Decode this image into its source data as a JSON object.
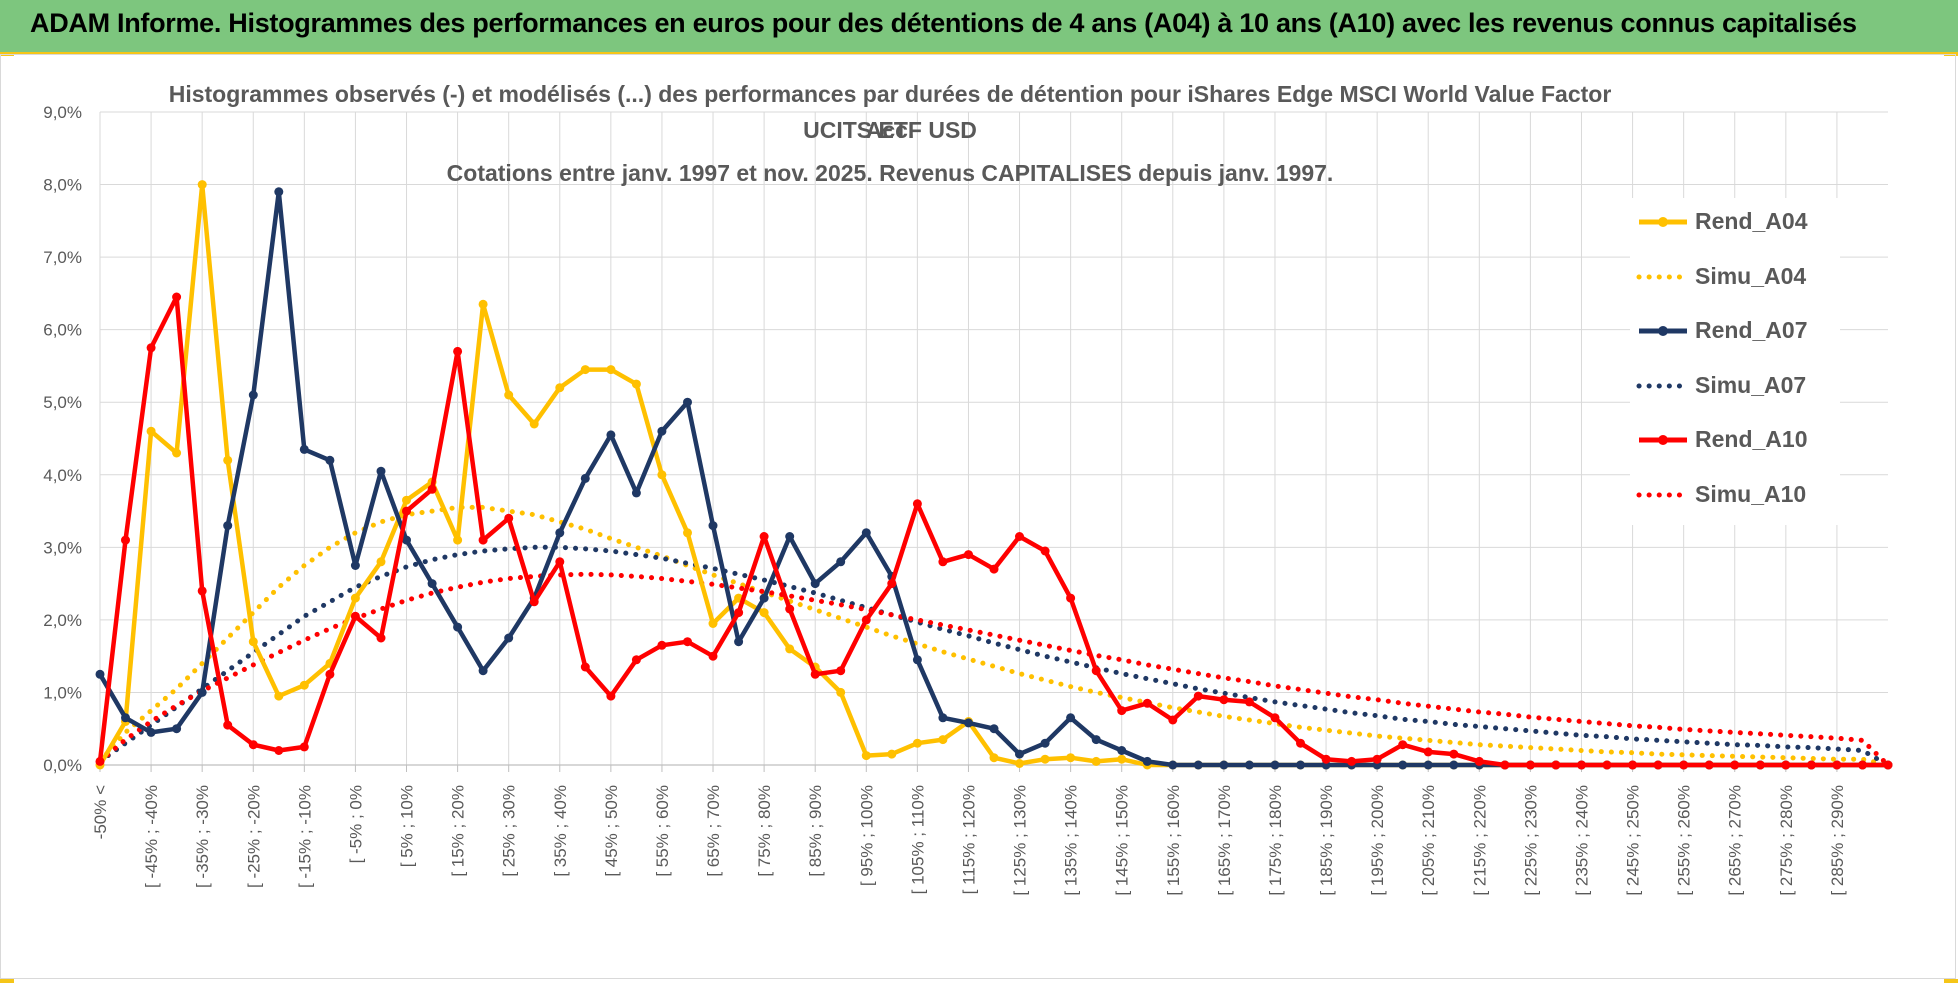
{
  "banner": {
    "title": "ADAM Informe. Histogrammes des performances en euros pour des détentions de 4 ans (A04) à 10 ans (A10) avec les revenus connus capitalisés"
  },
  "chart_data": {
    "type": "line",
    "title_lines": [
      "Histogrammes observés (-) et modélisés (...) des performances par durées de détention pour iShares Edge MSCI World Value Factor UCITS ETF USD",
      "Acc.",
      "Cotations entre janv. 1997 et nov. 2025. Revenus CAPITALISES depuis janv. 1997."
    ],
    "ylim": [
      0,
      9
    ],
    "y_ticks": [
      "0,0%",
      "1,0%",
      "2,0%",
      "3,0%",
      "4,0%",
      "5,0%",
      "6,0%",
      "7,0%",
      "8,0%",
      "9,0%"
    ],
    "grid": true,
    "legend_position": "right",
    "categories": [
      "-50% <",
      "[ -50% ; -45%",
      "[ -45% ; -40%",
      "[ -40% ; -35%",
      "[ -35% ; -30%",
      "[ -30% ; -25%",
      "[ -25% ; -20%",
      "[ -20% ; -15%",
      "[ -15% ; -10%",
      "[ -10% ; -5%",
      "[ -5% ; 0%",
      "[ 0% ; 5%",
      "[ 5% ; 10%",
      "[ 10% ; 15%",
      "[ 15% ; 20%",
      "[ 20% ; 25%",
      "[ 25% ; 30%",
      "[ 30% ; 35%",
      "[ 35% ; 40%",
      "[ 40% ; 45%",
      "[ 45% ; 50%",
      "[ 50% ; 55%",
      "[ 55% ; 60%",
      "[ 60% ; 65%",
      "[ 65% ; 70%",
      "[ 70% ; 75%",
      "[ 75% ; 80%",
      "[ 80% ; 85%",
      "[ 85% ; 90%",
      "[ 90% ; 95%",
      "[ 95% ; 100%",
      "[ 100% ; 105%",
      "[ 105% ; 110%",
      "[ 110% ; 115%",
      "[ 115% ; 120%",
      "[ 120% ; 125%",
      "[ 125% ; 130%",
      "[ 130% ; 135%",
      "[ 135% ; 140%",
      "[ 140% ; 145%",
      "[ 145% ; 150%",
      "[ 150% ; 155%",
      "[ 155% ; 160%",
      "[ 160% ; 165%",
      "[ 165% ; 170%",
      "[ 170% ; 175%",
      "[ 175% ; 180%",
      "[ 180% ; 185%",
      "[ 185% ; 190%",
      "[ 190% ; 195%",
      "[ 195% ; 200%",
      "[ 200% ; 205%",
      "[ 205% ; 210%",
      "[ 210% ; 215%",
      "[ 215% ; 220%",
      "[ 220% ; 225%",
      "[ 225% ; 230%",
      "[ 230% ; 235%",
      "[ 235% ; 240%",
      "[ 240% ; 245%",
      "[ 245% ; 250%",
      "[ 250% ; 255%",
      "[ 255% ; 260%",
      "[ 260% ; 265%",
      "[ 265% ; 270%",
      "[ 270% ; 275%",
      "[ 275% ; 280%",
      "[ 280% ; 285%",
      "[ 285% ; 290%",
      "[ 290% ; 295%",
      "[ 295% ; 300%"
    ],
    "visible_category_labels": [
      "-50% <",
      "[ -45% ; -40%",
      "[ -35% ; -30%",
      "[ -25% ; -20%",
      "[ -15% ; -10%",
      "[ -5% ; 0%",
      "[ 5% ; 10%",
      "[ 15% ; 20%",
      "[ 25% ; 30%",
      "[ 35% ; 40%",
      "[ 45% ; 50%",
      "[ 55% ; 60%",
      "[ 65% ; 70%",
      "[ 75% ; 80%",
      "[ 85% ; 90%",
      "[ 95% ; 100%",
      "[ 105% ; 110%",
      "[ 115% ; 120%",
      "[ 125% ; 130%",
      "[ 135% ; 140%",
      "[ 145% ; 150%",
      "[ 155% ; 160%",
      "[ 165% ; 170%",
      "[ 175% ; 180%",
      "[ 185% ; 190%",
      "[ 195% ; 200%",
      "[ 205% ; 210%",
      "[ 215% ; 220%",
      "[ 225% ; 230%",
      "[ 235% ; 240%",
      "[ 245% ; 250%",
      "[ 255% ; 260%",
      "[ 265% ; 270%",
      "[ 275% ; 280%",
      "[ 285% ; 290%"
    ],
    "series": [
      {
        "name": "Rend_A04",
        "style": "solid",
        "color": "#ffc000",
        "values": [
          0.0,
          0.6,
          4.6,
          4.3,
          8.0,
          4.2,
          1.7,
          0.95,
          1.1,
          1.4,
          2.3,
          2.8,
          3.65,
          3.9,
          3.1,
          6.35,
          5.1,
          4.7,
          5.2,
          5.45,
          5.45,
          5.25,
          4.0,
          3.2,
          1.95,
          2.3,
          2.1,
          1.6,
          1.35,
          1.0,
          0.13,
          0.15,
          0.3,
          0.35,
          0.6,
          0.1,
          0.02,
          0.08,
          0.1,
          0.05,
          0.08,
          0.0,
          0.0,
          0.0,
          0.0,
          0.0,
          0.0,
          0.0,
          0.0,
          0.0,
          0.0,
          0.0,
          0.0,
          0.0,
          0.0,
          0.0,
          0.0,
          0.0,
          0.0,
          0.0,
          0.0,
          0.0,
          0.0,
          0.0,
          0.0,
          0.0,
          0.0,
          0.0,
          0.0,
          0.0,
          0.0
        ]
      },
      {
        "name": "Simu_A04",
        "style": "dotted",
        "color": "#ffc000",
        "values": [
          0.05,
          0.45,
          0.75,
          1.05,
          1.4,
          1.75,
          2.1,
          2.45,
          2.75,
          3.0,
          3.2,
          3.35,
          3.45,
          3.5,
          3.55,
          3.55,
          3.5,
          3.45,
          3.35,
          3.25,
          3.12,
          3.0,
          2.88,
          2.75,
          2.62,
          2.5,
          2.38,
          2.26,
          2.14,
          2.02,
          1.9,
          1.78,
          1.67,
          1.56,
          1.46,
          1.36,
          1.26,
          1.17,
          1.08,
          1.0,
          0.93,
          0.86,
          0.79,
          0.73,
          0.67,
          0.62,
          0.57,
          0.52,
          0.48,
          0.44,
          0.4,
          0.37,
          0.34,
          0.31,
          0.28,
          0.26,
          0.24,
          0.22,
          0.2,
          0.18,
          0.17,
          0.15,
          0.14,
          0.13,
          0.12,
          0.11,
          0.1,
          0.09,
          0.08,
          0.08,
          0.0
        ]
      },
      {
        "name": "Rend_A07",
        "style": "solid",
        "color": "#1f3864",
        "values": [
          1.25,
          0.65,
          0.45,
          0.5,
          1.0,
          3.3,
          5.1,
          7.9,
          4.35,
          4.2,
          2.75,
          4.05,
          3.1,
          2.5,
          1.9,
          1.3,
          1.75,
          2.3,
          3.2,
          3.95,
          4.55,
          3.75,
          4.6,
          5.0,
          3.3,
          1.7,
          2.3,
          3.15,
          2.5,
          2.8,
          3.2,
          2.6,
          1.45,
          0.65,
          0.58,
          0.5,
          0.15,
          0.3,
          0.65,
          0.35,
          0.2,
          0.05,
          0.0,
          0.0,
          0.0,
          0.0,
          0.0,
          0.0,
          0.0,
          0.0,
          0.0,
          0.0,
          0.0,
          0.0,
          0.0,
          0.0,
          0.0,
          0.0,
          0.0,
          0.0,
          0.0,
          0.0,
          0.0,
          0.0,
          0.0,
          0.0,
          0.0,
          0.0,
          0.0,
          0.0,
          0.0
        ]
      },
      {
        "name": "Simu_A07",
        "style": "dotted",
        "color": "#1f3864",
        "values": [
          0.05,
          0.3,
          0.55,
          0.8,
          1.05,
          1.3,
          1.55,
          1.8,
          2.05,
          2.25,
          2.45,
          2.6,
          2.73,
          2.83,
          2.9,
          2.95,
          2.98,
          3.0,
          3.0,
          2.98,
          2.95,
          2.9,
          2.85,
          2.78,
          2.71,
          2.63,
          2.55,
          2.46,
          2.37,
          2.27,
          2.17,
          2.07,
          1.97,
          1.87,
          1.78,
          1.68,
          1.59,
          1.5,
          1.42,
          1.34,
          1.26,
          1.19,
          1.12,
          1.05,
          0.99,
          0.93,
          0.87,
          0.82,
          0.77,
          0.72,
          0.68,
          0.63,
          0.6,
          0.56,
          0.53,
          0.5,
          0.47,
          0.44,
          0.41,
          0.39,
          0.36,
          0.34,
          0.32,
          0.3,
          0.28,
          0.27,
          0.25,
          0.24,
          0.22,
          0.2,
          0.0
        ]
      },
      {
        "name": "Rend_A10",
        "style": "solid",
        "color": "#ff0000",
        "values": [
          0.05,
          3.1,
          5.75,
          6.45,
          2.4,
          0.55,
          0.28,
          0.2,
          0.25,
          1.25,
          2.05,
          1.75,
          3.5,
          3.8,
          5.7,
          3.1,
          3.4,
          2.25,
          2.8,
          1.35,
          0.95,
          1.45,
          1.65,
          1.7,
          1.5,
          2.1,
          3.15,
          2.15,
          1.25,
          1.3,
          2.0,
          2.5,
          3.6,
          2.8,
          2.9,
          2.7,
          3.15,
          2.95,
          2.3,
          1.3,
          0.75,
          0.85,
          0.62,
          0.95,
          0.9,
          0.87,
          0.65,
          0.3,
          0.08,
          0.05,
          0.08,
          0.28,
          0.18,
          0.15,
          0.05,
          0.0,
          0.0,
          0.0,
          0.0,
          0.0,
          0.0,
          0.0,
          0.0,
          0.0,
          0.0,
          0.0,
          0.0,
          0.0,
          0.0,
          0.0,
          0.0
        ]
      },
      {
        "name": "Simu_A10",
        "style": "dotted",
        "color": "#ff0000",
        "values": [
          0.05,
          0.35,
          0.6,
          0.82,
          1.02,
          1.2,
          1.38,
          1.55,
          1.72,
          1.88,
          2.02,
          2.15,
          2.27,
          2.37,
          2.45,
          2.52,
          2.57,
          2.6,
          2.62,
          2.63,
          2.62,
          2.6,
          2.57,
          2.53,
          2.49,
          2.44,
          2.39,
          2.33,
          2.27,
          2.21,
          2.14,
          2.07,
          2.0,
          1.93,
          1.86,
          1.79,
          1.72,
          1.65,
          1.58,
          1.51,
          1.45,
          1.38,
          1.32,
          1.26,
          1.2,
          1.15,
          1.09,
          1.04,
          0.99,
          0.94,
          0.9,
          0.85,
          0.81,
          0.77,
          0.73,
          0.7,
          0.66,
          0.63,
          0.6,
          0.57,
          0.54,
          0.52,
          0.49,
          0.47,
          0.45,
          0.43,
          0.41,
          0.39,
          0.37,
          0.34,
          0.0
        ]
      }
    ]
  }
}
